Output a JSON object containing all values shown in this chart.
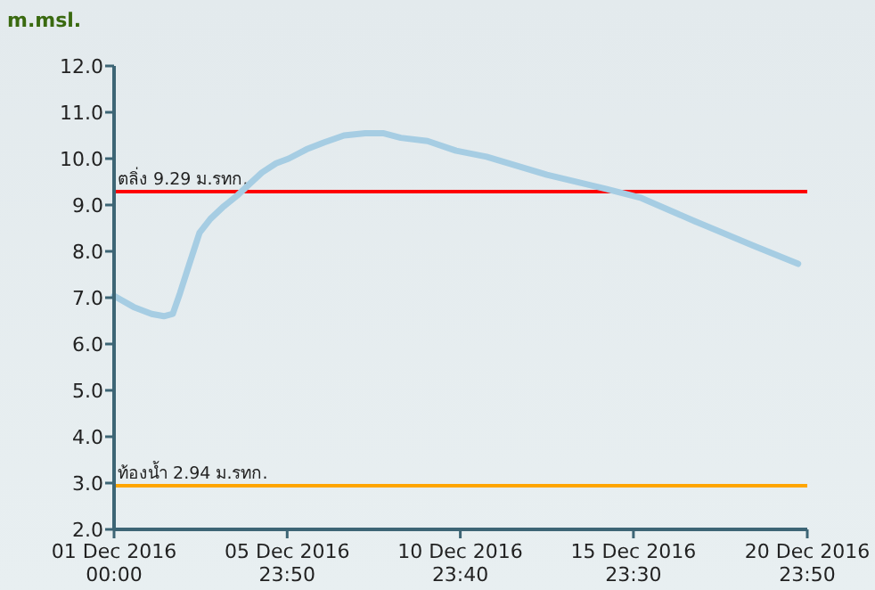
{
  "chart_data": {
    "type": "line",
    "ylabel": "m.msl.",
    "x": [
      "2016-12-01T00:00",
      "2016-12-01T13:30",
      "2016-12-02T02:00",
      "2016-12-02T10:30",
      "2016-12-02T16:40",
      "2016-12-02T21:40",
      "2016-12-03T03:50",
      "2016-12-03T11:10",
      "2016-12-03T18:40",
      "2016-12-04T03:10",
      "2016-12-04T13:10",
      "2016-12-04T21:40",
      "2016-12-05T06:20",
      "2016-12-05T16:10",
      "2016-12-06T00:50",
      "2016-12-06T13:10",
      "2016-12-07T01:30",
      "2016-12-07T15:10",
      "2016-12-08T05:50",
      "2016-12-08T18:10",
      "2016-12-09T06:30",
      "2016-12-10T01:00",
      "2016-12-10T20:50",
      "2016-12-11T17:50",
      "2016-12-13T11:40",
      "2016-12-15T04:20",
      "2016-12-16T05:00",
      "2016-12-17T18:00",
      "2016-12-19T10:40",
      "2016-12-20T17:30"
    ],
    "series": [
      {
        "color": "#a6cde3",
        "values": [
          7.04,
          6.8,
          6.65,
          6.6,
          6.65,
          7.1,
          7.7,
          8.4,
          8.7,
          8.95,
          9.2,
          9.45,
          9.7,
          9.9,
          10.0,
          10.2,
          10.35,
          10.5,
          10.55,
          10.55,
          10.45,
          10.38,
          10.17,
          10.04,
          9.65,
          9.35,
          9.15,
          8.65,
          8.12,
          7.73
        ]
      }
    ],
    "xlim": [
      "2016-12-01T00:00",
      "2016-12-20T23:50"
    ],
    "xticks": [
      {
        "value": "2016-12-01T00:00",
        "label": "01 Dec 2016 00:00"
      },
      {
        "value": "2016-12-05T23:50",
        "label": "05 Dec 2016 23:50"
      },
      {
        "value": "2016-12-10T23:40",
        "label": "10 Dec 2016 23:40"
      },
      {
        "value": "2016-12-15T23:30",
        "label": "15 Dec 2016 23:30"
      },
      {
        "value": "2016-12-20T23:50",
        "label": "20 Dec 2016 23:50"
      }
    ],
    "ylim": [
      2,
      12
    ],
    "yticks": [
      {
        "value": 2,
        "label": "2.0"
      },
      {
        "value": 3,
        "label": "3.0"
      },
      {
        "value": 4,
        "label": "4.0"
      },
      {
        "value": 5,
        "label": "5.0"
      },
      {
        "value": 6,
        "label": "6.0"
      },
      {
        "value": 7,
        "label": "7.0"
      },
      {
        "value": 8,
        "label": "8.0"
      },
      {
        "value": 9,
        "label": "9.0"
      },
      {
        "value": 10,
        "label": "10.0"
      },
      {
        "value": 11,
        "label": "11.0"
      },
      {
        "value": 12,
        "label": "12.0"
      }
    ],
    "ref_lines": [
      {
        "axis": "y",
        "value": 9.29,
        "label": "ตลิ่ง 9.29 ม.รทก.",
        "color": "#ff0000"
      },
      {
        "axis": "y",
        "value": 2.94,
        "label": "ท้องน้ำ 2.94 ม.รทก.",
        "color": "#ffa500"
      }
    ]
  }
}
